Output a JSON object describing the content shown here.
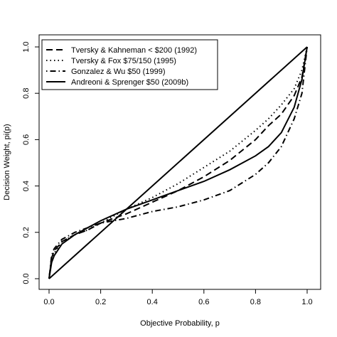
{
  "chart_data": {
    "type": "line",
    "xlabel": "Objective Probability, p",
    "ylabel": "Decision Weight, pi(p)",
    "xlim": [
      0,
      1
    ],
    "ylim": [
      0,
      1
    ],
    "x_ticks": [
      "0.0",
      "0.2",
      "0.4",
      "0.6",
      "0.8",
      "1.0"
    ],
    "y_ticks": [
      "0.0",
      "0.2",
      "0.4",
      "0.6",
      "0.8",
      "1.0"
    ],
    "grid": false,
    "legend_position": "top-left",
    "series": [
      {
        "name": "",
        "style": "solid",
        "color": "#000000",
        "x": [
          0,
          1
        ],
        "y": [
          0,
          1
        ]
      },
      {
        "name": "Tversky & Kahneman < $200 (1992)",
        "style": "dashed",
        "color": "#000000",
        "x": [
          0,
          0.01,
          0.02,
          0.05,
          0.1,
          0.15,
          0.2,
          0.3,
          0.4,
          0.5,
          0.6,
          0.7,
          0.8,
          0.85,
          0.9,
          0.95,
          0.98,
          1.0
        ],
        "y": [
          0,
          0.09,
          0.12,
          0.16,
          0.19,
          0.21,
          0.24,
          0.28,
          0.33,
          0.38,
          0.44,
          0.51,
          0.6,
          0.66,
          0.71,
          0.79,
          0.87,
          1.0
        ]
      },
      {
        "name": "Tversky & Fox $75/150 (1995)",
        "style": "dotted",
        "color": "#000000",
        "x": [
          0,
          0.01,
          0.02,
          0.05,
          0.1,
          0.15,
          0.2,
          0.3,
          0.4,
          0.5,
          0.6,
          0.7,
          0.8,
          0.85,
          0.9,
          0.95,
          0.98,
          1.0
        ],
        "y": [
          0,
          0.08,
          0.11,
          0.16,
          0.19,
          0.21,
          0.24,
          0.3,
          0.35,
          0.41,
          0.48,
          0.55,
          0.64,
          0.69,
          0.75,
          0.82,
          0.9,
          1.0
        ]
      },
      {
        "name": "Gonzalez & Wu $50 (1999)",
        "style": "dotdash",
        "color": "#000000",
        "x": [
          0,
          0.01,
          0.02,
          0.05,
          0.1,
          0.15,
          0.2,
          0.3,
          0.4,
          0.5,
          0.6,
          0.7,
          0.8,
          0.85,
          0.9,
          0.95,
          0.98,
          1.0
        ],
        "y": [
          0,
          0.1,
          0.13,
          0.17,
          0.2,
          0.22,
          0.24,
          0.26,
          0.29,
          0.31,
          0.34,
          0.38,
          0.45,
          0.5,
          0.57,
          0.69,
          0.8,
          1.0
        ]
      },
      {
        "name": "Andreoni & Sprenger $50 (2009b)",
        "style": "solid",
        "color": "#000000",
        "x": [
          0,
          0.01,
          0.02,
          0.05,
          0.1,
          0.15,
          0.2,
          0.3,
          0.4,
          0.5,
          0.6,
          0.7,
          0.8,
          0.85,
          0.9,
          0.95,
          0.98,
          1.0
        ],
        "y": [
          0,
          0.07,
          0.1,
          0.15,
          0.19,
          0.22,
          0.25,
          0.3,
          0.34,
          0.38,
          0.42,
          0.47,
          0.53,
          0.57,
          0.63,
          0.74,
          0.86,
          1.0
        ]
      }
    ]
  }
}
